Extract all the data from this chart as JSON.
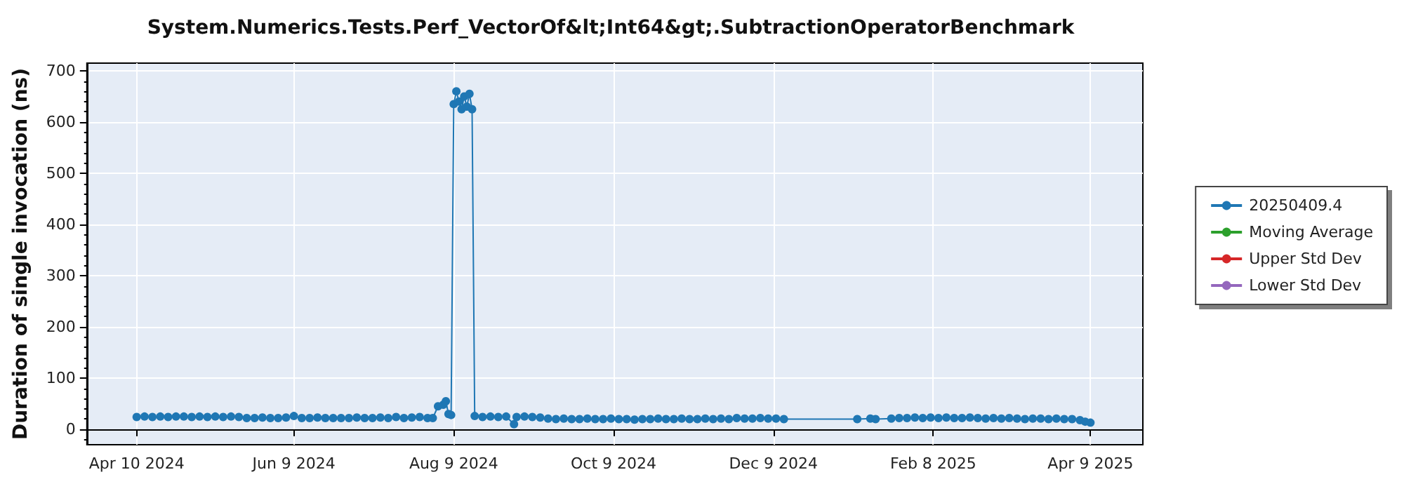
{
  "chart_data": {
    "type": "line",
    "title": "System.Numerics.Tests.Perf_VectorOf&lt;Int64&gt;.SubtractionOperatorBenchmark",
    "ylabel": "Duration of single invocation (ns)",
    "xlim": [
      "2024-03-22",
      "2025-04-29"
    ],
    "xticks": [
      {
        "value": "2024-04-10",
        "label": "Apr 10 2024"
      },
      {
        "value": "2024-06-09",
        "label": "Jun 9 2024"
      },
      {
        "value": "2024-08-09",
        "label": "Aug 9 2024"
      },
      {
        "value": "2024-10-09",
        "label": "Oct 9 2024"
      },
      {
        "value": "2024-12-09",
        "label": "Dec 9 2024"
      },
      {
        "value": "2025-02-08",
        "label": "Feb 8 2025"
      },
      {
        "value": "2025-04-09",
        "label": "Apr 9 2025"
      }
    ],
    "ylim": [
      -30,
      715
    ],
    "yticks": [
      0,
      100,
      200,
      300,
      400,
      500,
      600,
      700
    ],
    "grid": true,
    "legend": "right",
    "marker": "circle",
    "line_style": "solid",
    "series": [
      {
        "name": "20250409.4",
        "color": "#1f77b4",
        "x": [
          "2024-04-10",
          "2024-04-13",
          "2024-04-16",
          "2024-04-19",
          "2024-04-22",
          "2024-04-25",
          "2024-04-28",
          "2024-05-01",
          "2024-05-04",
          "2024-05-07",
          "2024-05-10",
          "2024-05-13",
          "2024-05-16",
          "2024-05-19",
          "2024-05-22",
          "2024-05-25",
          "2024-05-28",
          "2024-05-31",
          "2024-06-03",
          "2024-06-06",
          "2024-06-09",
          "2024-06-12",
          "2024-06-15",
          "2024-06-18",
          "2024-06-21",
          "2024-06-24",
          "2024-06-27",
          "2024-06-30",
          "2024-07-03",
          "2024-07-06",
          "2024-07-09",
          "2024-07-12",
          "2024-07-15",
          "2024-07-18",
          "2024-07-21",
          "2024-07-24",
          "2024-07-27",
          "2024-07-30",
          "2024-08-01",
          "2024-08-03",
          "2024-08-05",
          "2024-08-06",
          "2024-08-07",
          "2024-08-08",
          "2024-08-09",
          "2024-08-10",
          "2024-08-11",
          "2024-08-12",
          "2024-08-13",
          "2024-08-14",
          "2024-08-15",
          "2024-08-16",
          "2024-08-17",
          "2024-08-20",
          "2024-08-23",
          "2024-08-26",
          "2024-08-29",
          "2024-09-01",
          "2024-09-02",
          "2024-09-05",
          "2024-09-08",
          "2024-09-11",
          "2024-09-14",
          "2024-09-17",
          "2024-09-20",
          "2024-09-23",
          "2024-09-26",
          "2024-09-29",
          "2024-10-02",
          "2024-10-05",
          "2024-10-08",
          "2024-10-11",
          "2024-10-14",
          "2024-10-17",
          "2024-10-20",
          "2024-10-23",
          "2024-10-26",
          "2024-10-29",
          "2024-11-01",
          "2024-11-04",
          "2024-11-07",
          "2024-11-10",
          "2024-11-13",
          "2024-11-16",
          "2024-11-19",
          "2024-11-22",
          "2024-11-25",
          "2024-11-28",
          "2024-12-01",
          "2024-12-04",
          "2024-12-07",
          "2024-12-10",
          "2024-12-13",
          "2025-01-10",
          "2025-01-15",
          "2025-01-17",
          "2025-01-23",
          "2025-01-26",
          "2025-01-29",
          "2025-02-01",
          "2025-02-04",
          "2025-02-07",
          "2025-02-10",
          "2025-02-13",
          "2025-02-16",
          "2025-02-19",
          "2025-02-22",
          "2025-02-25",
          "2025-02-28",
          "2025-03-03",
          "2025-03-06",
          "2025-03-09",
          "2025-03-12",
          "2025-03-15",
          "2025-03-18",
          "2025-03-21",
          "2025-03-24",
          "2025-03-27",
          "2025-03-30",
          "2025-04-02",
          "2025-04-05",
          "2025-04-07",
          "2025-04-09"
        ],
        "values": [
          24,
          25,
          24,
          25,
          24,
          25,
          25,
          24,
          25,
          24,
          25,
          24,
          25,
          24,
          22,
          22,
          23,
          22,
          22,
          23,
          26,
          22,
          22,
          23,
          22,
          22,
          22,
          22,
          23,
          22,
          22,
          23,
          22,
          24,
          22,
          23,
          24,
          22,
          22,
          45,
          48,
          55,
          30,
          28,
          635,
          660,
          640,
          625,
          650,
          630,
          655,
          625,
          26,
          24,
          25,
          24,
          25,
          10,
          24,
          25,
          24,
          23,
          21,
          20,
          21,
          20,
          20,
          21,
          20,
          20,
          21,
          20,
          20,
          19,
          20,
          20,
          21,
          20,
          20,
          21,
          20,
          20,
          21,
          20,
          21,
          20,
          22,
          21,
          21,
          22,
          21,
          21,
          20,
          20,
          21,
          20,
          21,
          22,
          22,
          23,
          22,
          23,
          22,
          23,
          22,
          22,
          23,
          22,
          21,
          22,
          21,
          22,
          21,
          20,
          21,
          21,
          20,
          21,
          20,
          20,
          18,
          15,
          13
        ]
      },
      {
        "name": "Moving Average",
        "color": "#2ca02c"
      },
      {
        "name": "Upper Std Dev",
        "color": "#d62728"
      },
      {
        "name": "Lower Std Dev",
        "color": "#9467bd"
      }
    ]
  }
}
